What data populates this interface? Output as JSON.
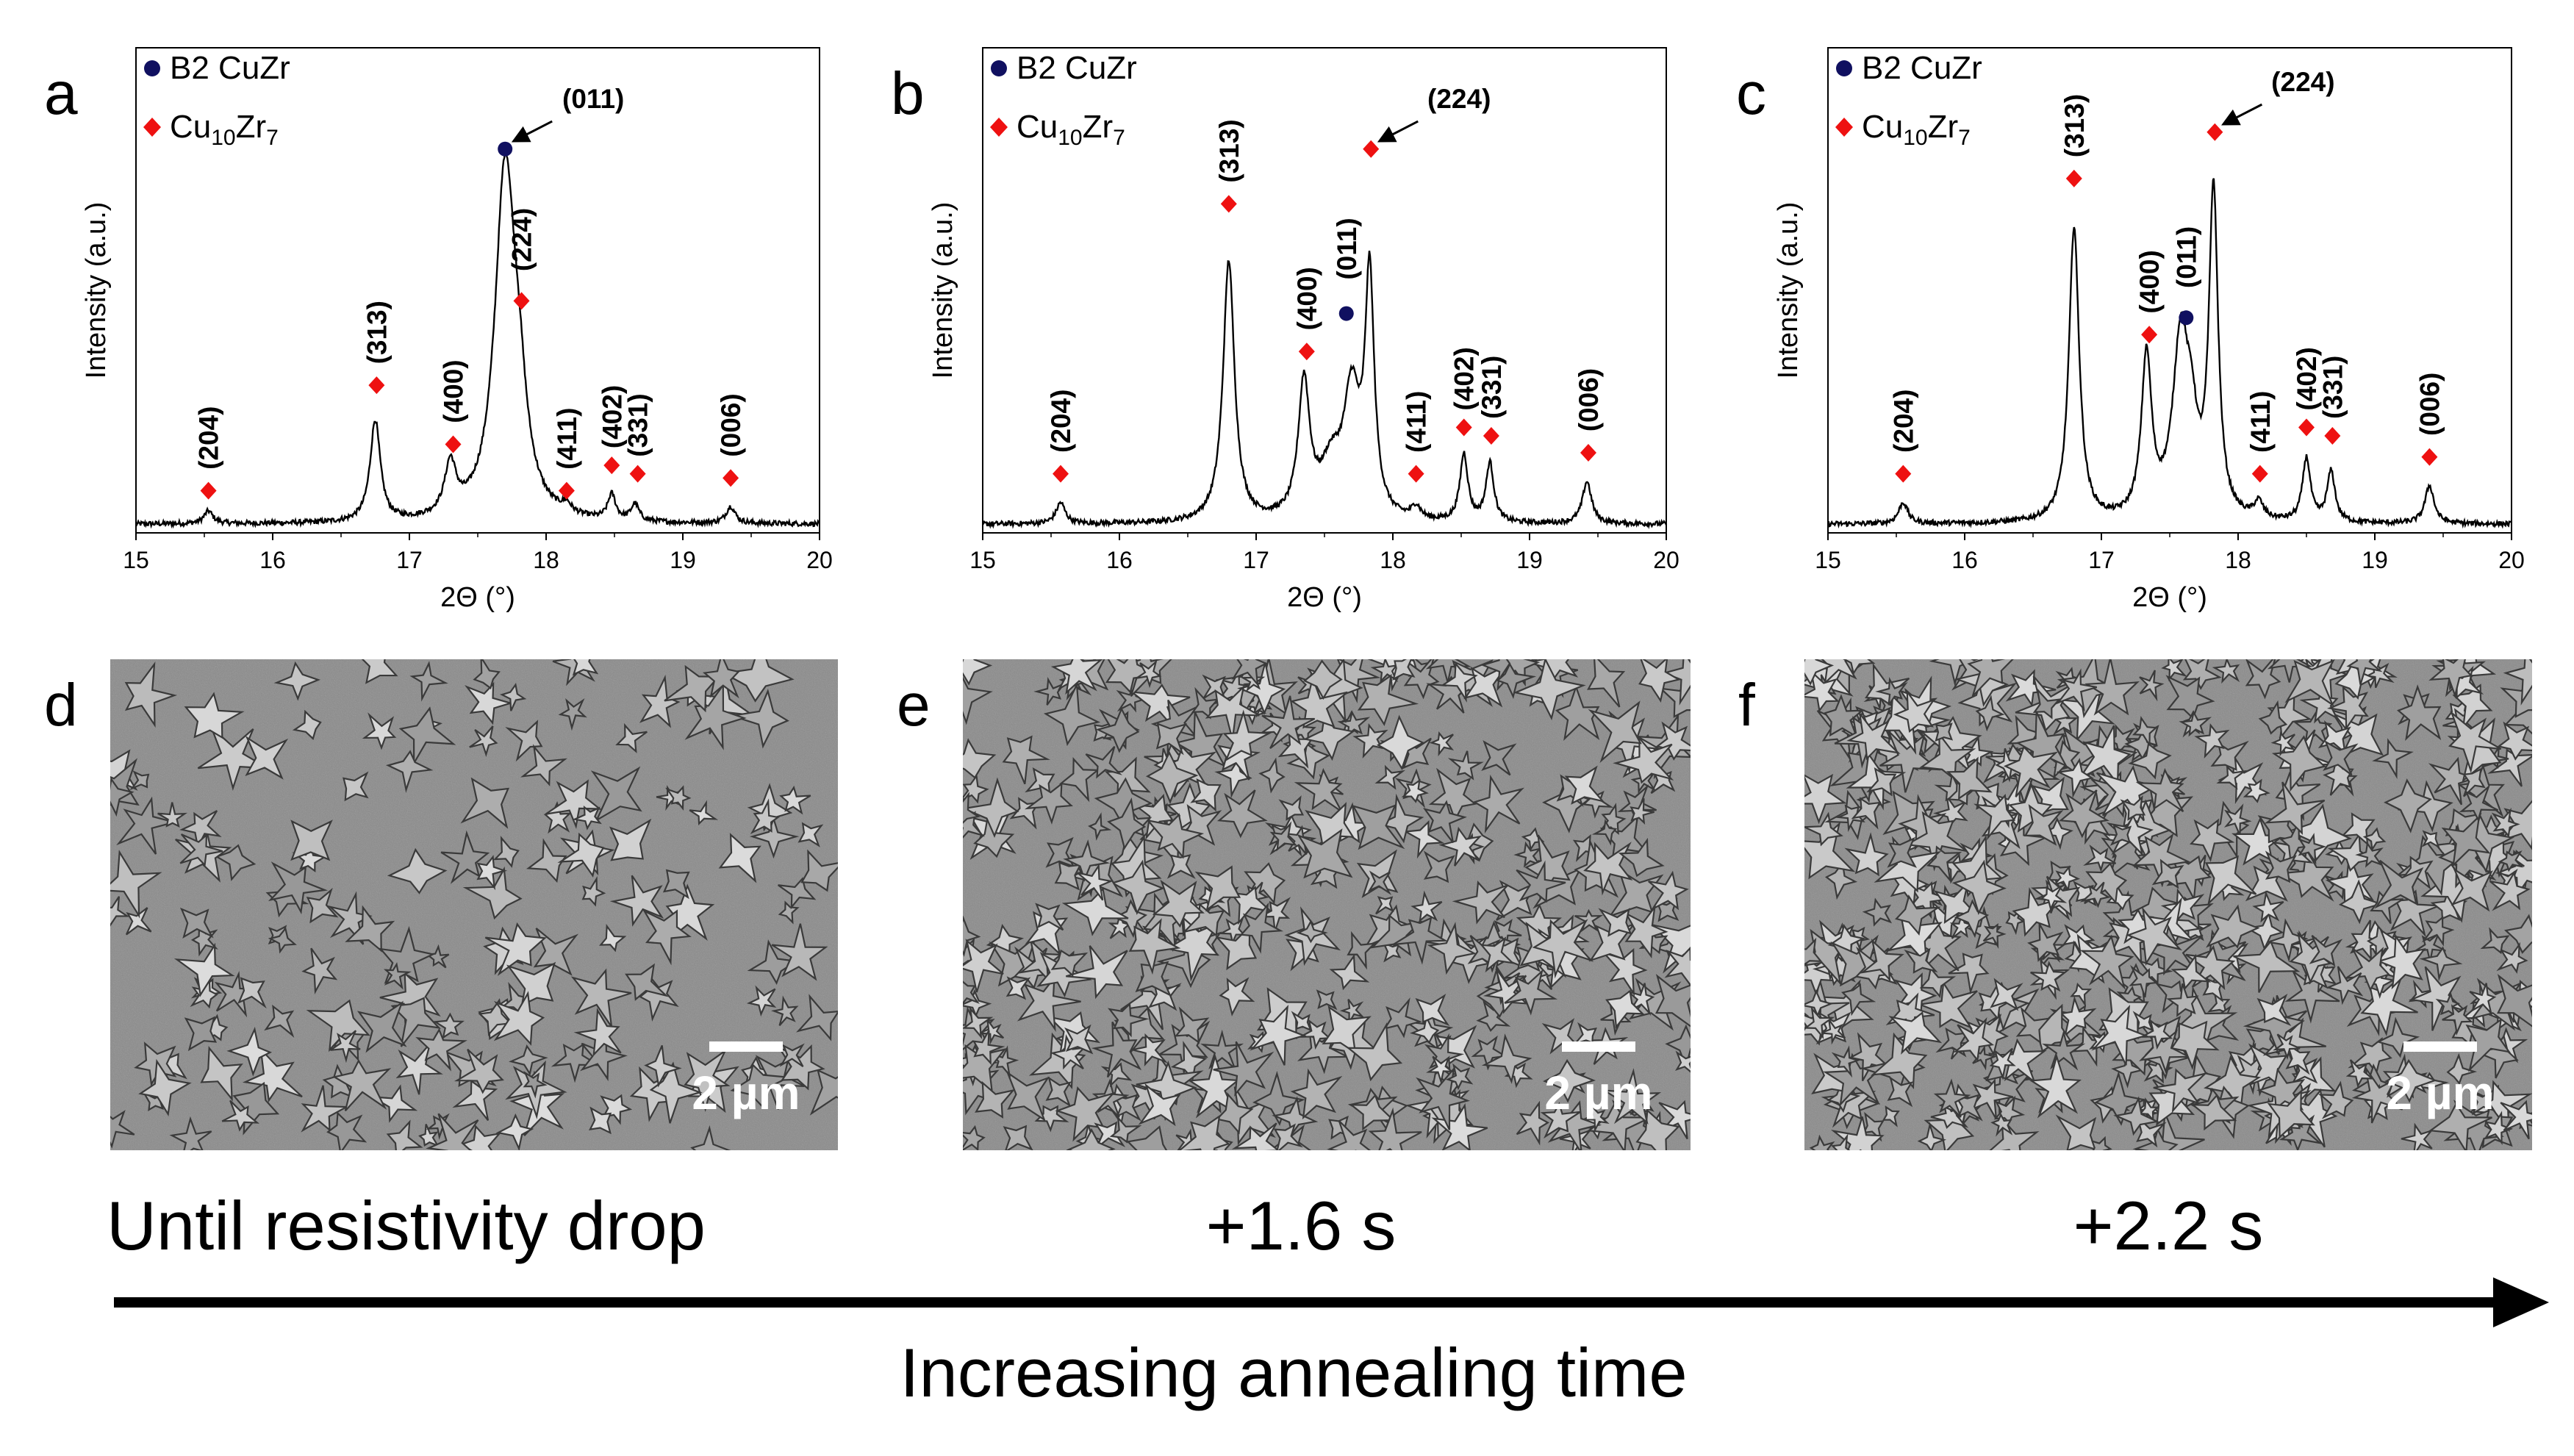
{
  "chart_data": [
    {
      "type": "line",
      "panel_label": "a",
      "xlabel": "2Θ (°)",
      "ylabel": "Intensity (a.u.)",
      "xlim": [
        15,
        20
      ],
      "ylim": [
        0,
        1.15
      ],
      "xticks": [
        "15",
        "16",
        "17",
        "18",
        "19",
        "20"
      ],
      "legend": [
        {
          "label": "B2 CuZr",
          "marker": "circle",
          "color": "#101060"
        },
        {
          "label": "Cu10Zr7",
          "base": "Cu",
          "sub1": "10",
          "mid": "Zr",
          "sub2": "7",
          "marker": "diamond",
          "color": "#ee1111"
        }
      ],
      "baseline": 0.02,
      "peaks": [
        {
          "pos": 15.53,
          "height": 0.03,
          "width": 0.04
        },
        {
          "pos": 16.75,
          "height": 0.24,
          "width": 0.045
        },
        {
          "pos": 17.3,
          "height": 0.12,
          "width": 0.05
        },
        {
          "pos": 17.7,
          "height": 0.82,
          "width": 0.09
        },
        {
          "pos": 17.8,
          "height": 0.18,
          "width": 0.07
        },
        {
          "pos": 18.15,
          "height": 0.02,
          "width": 0.04
        },
        {
          "pos": 18.48,
          "height": 0.06,
          "width": 0.035
        },
        {
          "pos": 18.65,
          "height": 0.04,
          "width": 0.035
        },
        {
          "pos": 19.35,
          "height": 0.04,
          "width": 0.04
        }
      ],
      "annotations": [
        {
          "label": "(204)",
          "x": 15.53,
          "marker_y": 0.1,
          "marker": "diamond",
          "label_y": 0.15
        },
        {
          "label": "(313)",
          "x": 16.76,
          "marker_y": 0.35,
          "marker": "diamond",
          "label_y": 0.4
        },
        {
          "label": "(400)",
          "x": 17.32,
          "marker_y": 0.21,
          "marker": "diamond",
          "label_y": 0.26
        },
        {
          "label": "(224)",
          "x": 17.82,
          "marker_y": 0.55,
          "marker": "diamond",
          "label_y": 0.62
        },
        {
          "label": "(011)",
          "x": 17.7,
          "marker_y": 0.91,
          "marker": "circle",
          "arrow": true,
          "label_y": 1.0
        },
        {
          "label": "(411)",
          "x": 18.15,
          "marker_y": 0.1,
          "marker": "diamond",
          "label_y": 0.15
        },
        {
          "label": "(402)",
          "x": 18.48,
          "marker_y": 0.16,
          "marker": "diamond",
          "label_y": 0.2
        },
        {
          "label": "(331)",
          "x": 18.67,
          "marker_y": 0.14,
          "marker": "diamond",
          "label_y": 0.18
        },
        {
          "label": "(006)",
          "x": 19.35,
          "marker_y": 0.13,
          "marker": "diamond",
          "label_y": 0.18
        }
      ]
    },
    {
      "type": "line",
      "panel_label": "b",
      "xlabel": "2Θ (°)",
      "ylabel": "Intensity (a.u.)",
      "xlim": [
        15,
        20
      ],
      "ylim": [
        0,
        1.15
      ],
      "xticks": [
        "15",
        "16",
        "17",
        "18",
        "19",
        "20"
      ],
      "legend": [
        {
          "label": "B2 CuZr",
          "marker": "circle",
          "color": "#101060"
        },
        {
          "label": "Cu10Zr7",
          "base": "Cu",
          "sub1": "10",
          "mid": "Zr",
          "sub2": "7",
          "marker": "diamond",
          "color": "#ee1111"
        }
      ],
      "baseline": 0.02,
      "peaks": [
        {
          "pos": 15.57,
          "height": 0.05,
          "width": 0.04
        },
        {
          "pos": 16.8,
          "height": 0.62,
          "width": 0.05
        },
        {
          "pos": 17.35,
          "height": 0.32,
          "width": 0.05
        },
        {
          "pos": 17.55,
          "height": 0.12,
          "width": 0.1
        },
        {
          "pos": 17.7,
          "height": 0.28,
          "width": 0.07
        },
        {
          "pos": 17.83,
          "height": 0.56,
          "width": 0.04
        },
        {
          "pos": 18.17,
          "height": 0.03,
          "width": 0.04
        },
        {
          "pos": 18.52,
          "height": 0.16,
          "width": 0.035
        },
        {
          "pos": 18.71,
          "height": 0.14,
          "width": 0.035
        },
        {
          "pos": 19.42,
          "height": 0.1,
          "width": 0.04
        }
      ],
      "annotations": [
        {
          "label": "(204)",
          "x": 15.57,
          "marker_y": 0.14,
          "marker": "diamond",
          "label_y": 0.19
        },
        {
          "label": "(313)",
          "x": 16.8,
          "marker_y": 0.78,
          "marker": "diamond",
          "label_y": 0.83
        },
        {
          "label": "(400)",
          "x": 17.37,
          "marker_y": 0.43,
          "marker": "diamond",
          "label_y": 0.48
        },
        {
          "label": "(011)",
          "x": 17.66,
          "marker_y": 0.52,
          "marker": "circle",
          "label_y": 0.6
        },
        {
          "label": "(224)",
          "x": 17.84,
          "marker_y": 0.91,
          "marker": "diamond",
          "arrow": true,
          "label_y": 1.0
        },
        {
          "label": "(411)",
          "x": 18.17,
          "marker_y": 0.14,
          "marker": "diamond",
          "label_y": 0.19
        },
        {
          "label": "(402)",
          "x": 18.52,
          "marker_y": 0.25,
          "marker": "diamond",
          "label_y": 0.29
        },
        {
          "label": "(331)",
          "x": 18.72,
          "marker_y": 0.23,
          "marker": "diamond",
          "label_y": 0.27
        },
        {
          "label": "(006)",
          "x": 19.43,
          "marker_y": 0.19,
          "marker": "diamond",
          "label_y": 0.24
        }
      ]
    },
    {
      "type": "line",
      "panel_label": "c",
      "xlabel": "2Θ (°)",
      "ylabel": "Intensity (a.u.)",
      "xlim": [
        15,
        20
      ],
      "ylim": [
        0,
        1.15
      ],
      "xticks": [
        "15",
        "16",
        "17",
        "18",
        "19",
        "20"
      ],
      "legend": [
        {
          "label": "B2 CuZr",
          "marker": "circle",
          "color": "#101060"
        },
        {
          "label": "Cu10Zr7",
          "base": "Cu",
          "sub1": "10",
          "mid": "Zr",
          "sub2": "7",
          "marker": "diamond",
          "color": "#ee1111"
        }
      ],
      "baseline": 0.02,
      "peaks": [
        {
          "pos": 15.55,
          "height": 0.05,
          "width": 0.04
        },
        {
          "pos": 16.8,
          "height": 0.7,
          "width": 0.045
        },
        {
          "pos": 17.33,
          "height": 0.38,
          "width": 0.045
        },
        {
          "pos": 17.58,
          "height": 0.42,
          "width": 0.07
        },
        {
          "pos": 17.66,
          "height": 0.15,
          "width": 0.05
        },
        {
          "pos": 17.82,
          "height": 0.77,
          "width": 0.04
        },
        {
          "pos": 18.15,
          "height": 0.04,
          "width": 0.04
        },
        {
          "pos": 18.5,
          "height": 0.15,
          "width": 0.035
        },
        {
          "pos": 18.68,
          "height": 0.12,
          "width": 0.035
        },
        {
          "pos": 19.4,
          "height": 0.09,
          "width": 0.04
        }
      ],
      "annotations": [
        {
          "label": "(204)",
          "x": 15.55,
          "marker_y": 0.14,
          "marker": "diamond",
          "label_y": 0.19
        },
        {
          "label": "(313)",
          "x": 16.8,
          "marker_y": 0.84,
          "marker": "diamond",
          "label_y": 0.89
        },
        {
          "label": "(400)",
          "x": 17.35,
          "marker_y": 0.47,
          "marker": "diamond",
          "label_y": 0.52
        },
        {
          "label": "(011)",
          "x": 17.62,
          "marker_y": 0.51,
          "marker": "circle",
          "label_y": 0.58
        },
        {
          "label": "(224)",
          "x": 17.83,
          "marker_y": 0.95,
          "marker": "diamond",
          "arrow": true,
          "label_y": 1.04
        },
        {
          "label": "(411)",
          "x": 18.16,
          "marker_y": 0.14,
          "marker": "diamond",
          "label_y": 0.19
        },
        {
          "label": "(402)",
          "x": 18.5,
          "marker_y": 0.25,
          "marker": "diamond",
          "label_y": 0.29
        },
        {
          "label": "(331)",
          "x": 18.69,
          "marker_y": 0.23,
          "marker": "diamond",
          "label_y": 0.27
        },
        {
          "label": "(006)",
          "x": 19.4,
          "marker_y": 0.18,
          "marker": "diamond",
          "label_y": 0.23
        }
      ]
    }
  ],
  "micrographs": [
    {
      "panel_label": "d",
      "scale_bar": "2 µm",
      "grain_density": 0.45,
      "caption": "Until resistivity drop"
    },
    {
      "panel_label": "e",
      "scale_bar": "2 µm",
      "grain_density": 1.0,
      "caption": "+1.6 s"
    },
    {
      "panel_label": "f",
      "scale_bar": "2 µm",
      "grain_density": 1.35,
      "caption": "+2.2 s"
    }
  ],
  "timeline": {
    "label": "Increasing annealing time"
  },
  "colors": {
    "diamond": "#ee1111",
    "circle": "#101060",
    "curve": "#000000",
    "sem_base": "#8a8a8a"
  }
}
